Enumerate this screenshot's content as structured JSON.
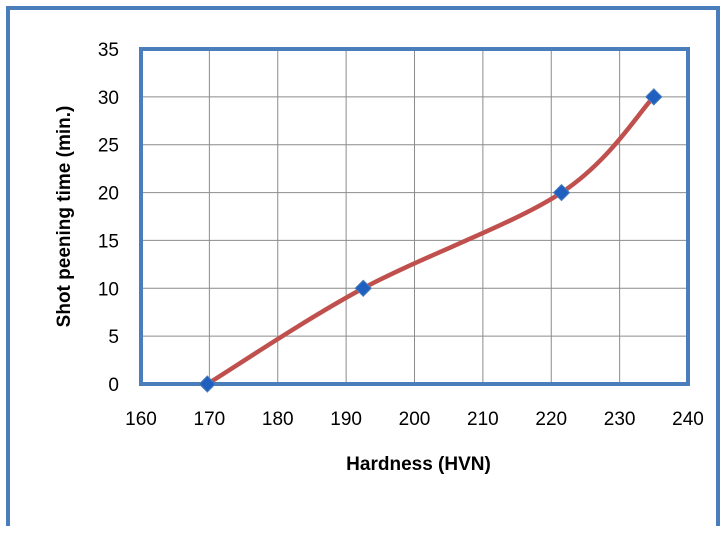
{
  "chart_data": {
    "type": "line",
    "xlabel": "Hardness (HVN)",
    "ylabel": "Shot peening time (min.)",
    "xlim": [
      160,
      240
    ],
    "ylim": [
      0,
      35
    ],
    "xticks": [
      "160",
      "170",
      "180",
      "190",
      "200",
      "210",
      "220",
      "230",
      "240"
    ],
    "yticks": [
      "0",
      "5",
      "10",
      "15",
      "20",
      "25",
      "30",
      "35"
    ],
    "grid": true,
    "legend": "none",
    "series": [
      {
        "x": [
          169.7,
          192.5,
          221.5,
          235
        ],
        "y": [
          0,
          10,
          20,
          30
        ],
        "line_color": "#c0504d",
        "marker_color": "#1f5fbf",
        "marker": "diamond",
        "smooth": true
      }
    ]
  }
}
